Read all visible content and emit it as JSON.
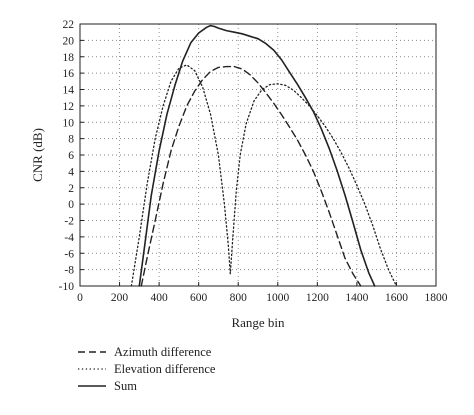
{
  "chart_data": {
    "type": "line",
    "title": "",
    "xlabel": "Range bin",
    "ylabel": "CNR (dB)",
    "xlim": [
      0,
      1800
    ],
    "ylim": [
      -10,
      22
    ],
    "xticks": [
      0,
      200,
      400,
      600,
      800,
      1000,
      1200,
      1400,
      1600,
      1800
    ],
    "yticks": [
      -10,
      -8,
      -6,
      -4,
      -2,
      0,
      2,
      4,
      6,
      8,
      10,
      12,
      14,
      16,
      18,
      20,
      22
    ],
    "grid": true,
    "legend_position": "below",
    "series": [
      {
        "name": "Azimuth difference",
        "style": "dashed",
        "x": [
          310,
          340,
          380,
          420,
          460,
          500,
          540,
          580,
          620,
          660,
          700,
          740,
          780,
          820,
          860,
          900,
          940,
          980,
          1020,
          1060,
          1100,
          1140,
          1180,
          1220,
          1260,
          1300,
          1340,
          1380,
          1420
        ],
        "y": [
          -10,
          -6.5,
          -2,
          2.5,
          6.5,
          9.5,
          12,
          13.8,
          15.2,
          16.2,
          16.7,
          16.8,
          16.8,
          16.5,
          15.8,
          14.8,
          13.6,
          12.3,
          10.9,
          9.4,
          7.8,
          6,
          4,
          1.6,
          -1,
          -3.8,
          -6.6,
          -8.5,
          -10
        ]
      },
      {
        "name": "Elevation difference",
        "style": "dotted",
        "x": [
          260,
          300,
          340,
          380,
          420,
          460,
          500,
          540,
          580,
          620,
          660,
          700,
          730,
          750,
          760,
          770,
          790,
          810,
          840,
          880,
          920,
          960,
          1000,
          1040,
          1080,
          1120,
          1160,
          1200,
          1240,
          1280,
          1320,
          1360,
          1400,
          1440,
          1480,
          1520,
          1560,
          1600
        ],
        "y": [
          -10,
          -4,
          2.5,
          8,
          12,
          15,
          16.6,
          17,
          16.3,
          14.3,
          11,
          6,
          0,
          -5,
          -8.5,
          -5,
          1.5,
          6,
          9.8,
          12.6,
          14,
          14.6,
          14.7,
          14.5,
          13.9,
          13,
          12,
          10.8,
          9.5,
          8,
          6.3,
          4.4,
          2.3,
          0,
          -2.6,
          -5.5,
          -8,
          -10
        ]
      },
      {
        "name": "Sum",
        "style": "solid",
        "x": [
          300,
          330,
          360,
          400,
          440,
          480,
          520,
          560,
          600,
          640,
          660,
          680,
          700,
          740,
          780,
          820,
          860,
          900,
          940,
          980,
          1020,
          1060,
          1100,
          1140,
          1180,
          1220,
          1260,
          1300,
          1340,
          1380,
          1420,
          1460,
          1490
        ],
        "y": [
          -10,
          -4.5,
          1,
          6.5,
          11,
          14.5,
          17.5,
          19.7,
          20.9,
          21.6,
          21.8,
          21.7,
          21.5,
          21.2,
          21,
          20.8,
          20.5,
          20.2,
          19.6,
          18.8,
          17.6,
          16.1,
          14.6,
          13,
          11.3,
          9.2,
          6.8,
          4.1,
          1.1,
          -2.2,
          -5.6,
          -8.4,
          -10
        ]
      }
    ]
  }
}
